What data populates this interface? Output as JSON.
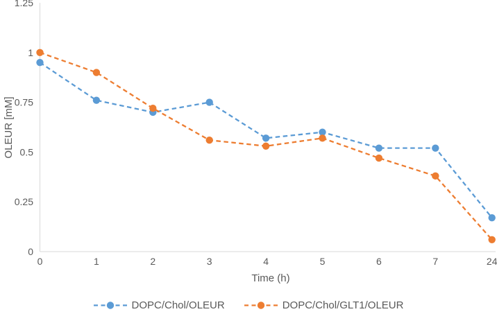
{
  "chart_data": {
    "type": "line",
    "title": "",
    "xlabel": "Time (h)",
    "ylabel": "OLEUR [mM]",
    "categories": [
      "0",
      "1",
      "2",
      "3",
      "4",
      "5",
      "6",
      "7",
      "24"
    ],
    "y_ticks": [
      "0",
      "0.25",
      "0.5",
      "0.75",
      "1",
      "1.25"
    ],
    "ylim": [
      0,
      1.25
    ],
    "grid": false,
    "legend_position": "bottom",
    "line_style": "dashed",
    "marker": "circle",
    "series": [
      {
        "name": "DOPC/Chol/OLEUR",
        "color": "#5B9BD5",
        "values": [
          0.95,
          0.76,
          0.7,
          0.75,
          0.57,
          0.6,
          0.52,
          0.52,
          0.17
        ]
      },
      {
        "name": "DOPC/Chol/GLT1/OLEUR",
        "color": "#ED7D31",
        "values": [
          1.0,
          0.9,
          0.72,
          0.56,
          0.53,
          0.57,
          0.47,
          0.38,
          0.06
        ]
      }
    ]
  },
  "colors": {
    "background": "#FFFFFF",
    "axis_line": "#D9D9D9",
    "text": "#595959"
  }
}
